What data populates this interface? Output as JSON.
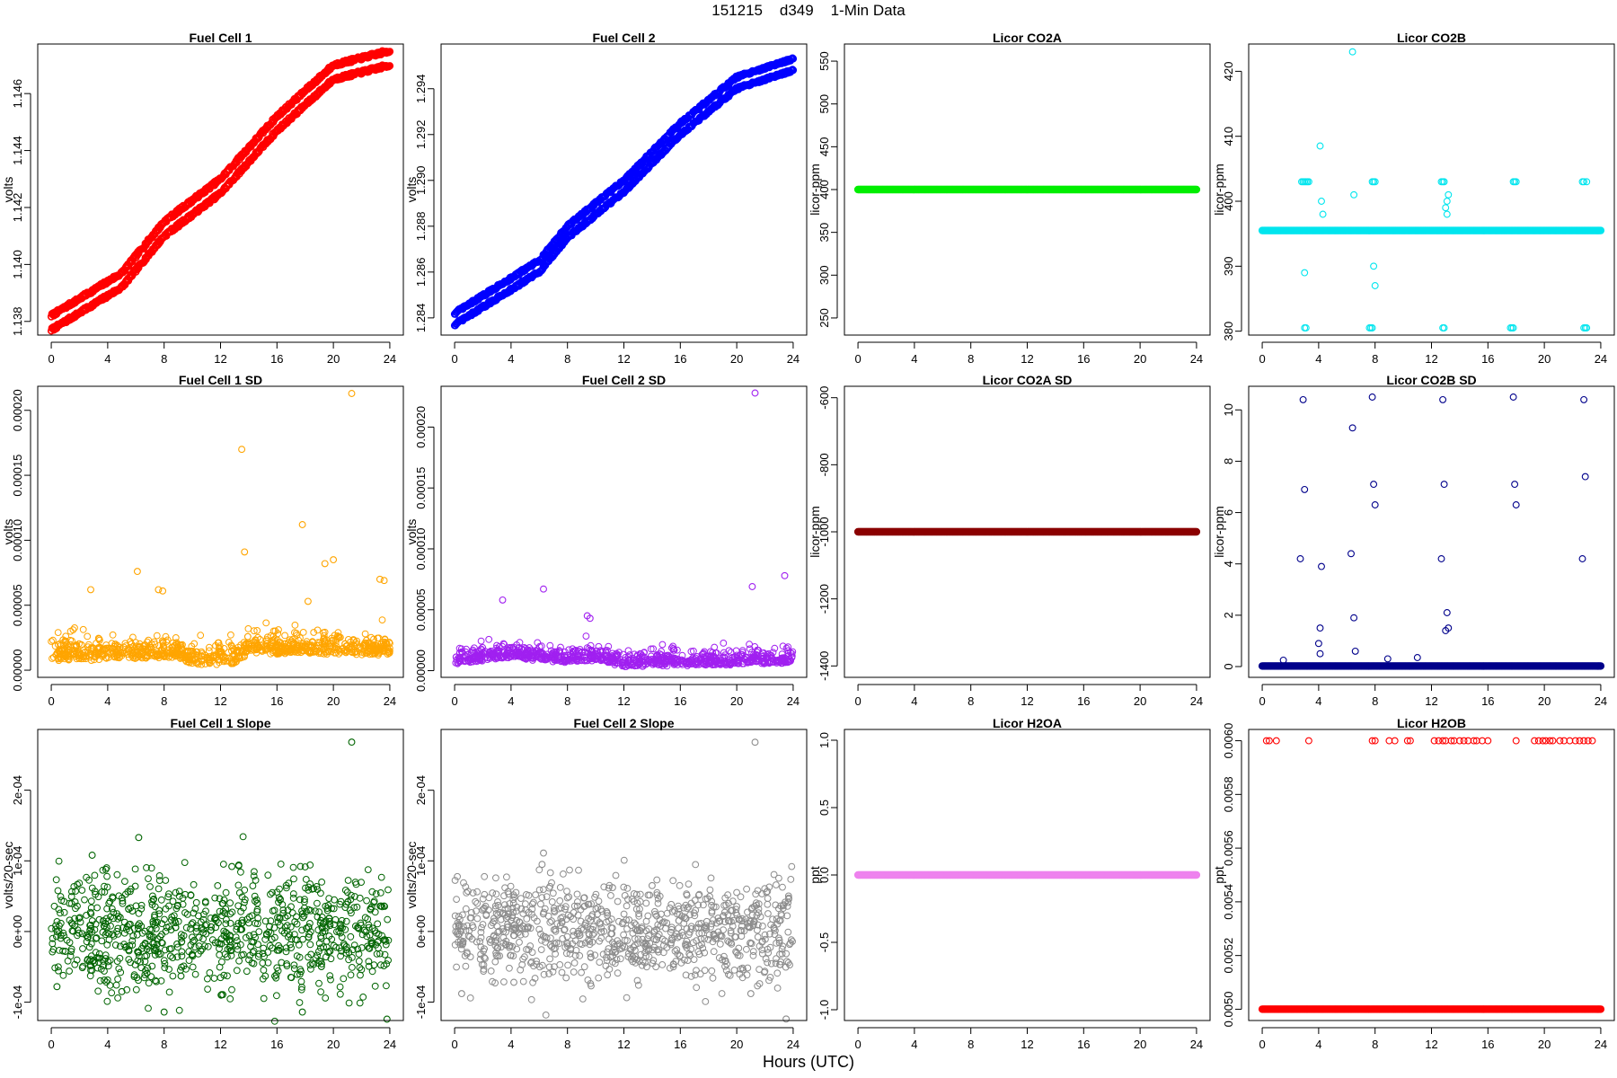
{
  "figure": {
    "title": "151215    d349    1-Min Data",
    "xlabel": "Hours (UTC)"
  },
  "chart_data": [
    {
      "type": "scatter",
      "title": "Fuel Cell 1",
      "ylabel": "volts",
      "color": "#ff0000",
      "xlim": [
        -0.96,
        24.96
      ],
      "ylim": [
        1.13752,
        1.14774
      ],
      "xticks": [
        0,
        4,
        8,
        12,
        16,
        20,
        24
      ],
      "xtick_labels": [
        "0",
        "4",
        "8",
        "12",
        "16",
        "20",
        "24"
      ],
      "yticks": [
        1.138,
        1.14,
        1.142,
        1.144,
        1.146
      ],
      "ytick_labels": [
        "1.138",
        "1.140",
        "1.142",
        "1.144",
        "1.146"
      ],
      "series": [
        {
          "gen": "twinline",
          "x_range": [
            0,
            24
          ],
          "points": [
            [
              0,
              1.1377
            ],
            [
              5,
              1.1392
            ],
            [
              8,
              1.141
            ],
            [
              12,
              1.1425
            ],
            [
              16,
              1.1447
            ],
            [
              20,
              1.1465
            ],
            [
              24,
              1.147
            ]
          ],
          "offset": 0.0005
        }
      ]
    },
    {
      "type": "scatter",
      "title": "Fuel Cell 2",
      "ylabel": "volts",
      "color": "#0000ff",
      "xlim": [
        -0.96,
        24.96
      ],
      "ylim": [
        1.28325,
        1.29595
      ],
      "xticks": [
        0,
        4,
        8,
        12,
        16,
        20,
        24
      ],
      "xtick_labels": [
        "0",
        "4",
        "8",
        "12",
        "16",
        "20",
        "24"
      ],
      "yticks": [
        1.284,
        1.286,
        1.288,
        1.29,
        1.292,
        1.294
      ],
      "ytick_labels": [
        "1.284",
        "1.286",
        "1.288",
        "1.290",
        "1.292",
        "1.294"
      ],
      "series": [
        {
          "gen": "twinline",
          "x_range": [
            0,
            24
          ],
          "points": [
            [
              0,
              1.2837
            ],
            [
              6,
              1.286
            ],
            [
              8,
              1.2875
            ],
            [
              12,
              1.2895
            ],
            [
              16,
              1.292
            ],
            [
              20,
              1.294
            ],
            [
              24,
              1.2948
            ]
          ],
          "offset": 0.0005
        }
      ]
    },
    {
      "type": "scatter",
      "title": "Licor CO2A",
      "ylabel": "licor-ppm",
      "color": "#00ee00",
      "xlim": [
        -0.96,
        24.96
      ],
      "ylim": [
        230,
        570
      ],
      "xticks": [
        0,
        4,
        8,
        12,
        16,
        20,
        24
      ],
      "xtick_labels": [
        "0",
        "4",
        "8",
        "12",
        "16",
        "20",
        "24"
      ],
      "yticks": [
        250,
        300,
        350,
        400,
        450,
        500,
        550
      ],
      "ytick_labels": [
        "250",
        "300",
        "350",
        "400",
        "450",
        "500",
        "550"
      ],
      "series": [
        {
          "gen": "flat",
          "x_range": [
            0,
            24
          ],
          "y": 400
        }
      ]
    },
    {
      "type": "scatter",
      "title": "Licor CO2B",
      "ylabel": "licor-ppm",
      "color": "#00e5ee",
      "xlim": [
        -0.96,
        24.96
      ],
      "ylim": [
        379.4,
        424.2
      ],
      "xticks": [
        0,
        4,
        8,
        12,
        16,
        20,
        24
      ],
      "xtick_labels": [
        "0",
        "4",
        "8",
        "12",
        "16",
        "20",
        "24"
      ],
      "yticks": [
        380,
        390,
        400,
        410,
        420
      ],
      "ytick_labels": [
        "380",
        "390",
        "400",
        "410",
        "420"
      ],
      "series": [
        {
          "gen": "flat",
          "x_range": [
            0,
            24
          ],
          "y": 395.5
        },
        {
          "gen": "points",
          "x": [
            2.8,
            2.9,
            3.0,
            3.1,
            3.2,
            3.3,
            3.0,
            4.1,
            4.2,
            4.3,
            6.4,
            7.8,
            7.9,
            8.0,
            12.7,
            12.8,
            12.9,
            13.1,
            13.2,
            17.8,
            17.9,
            18.0,
            22.7,
            22.8,
            23.0,
            3.0,
            3.1,
            7.6,
            7.7,
            7.8,
            12.8,
            12.9,
            17.6,
            17.7,
            17.8,
            22.8,
            22.9,
            23.0,
            6.5,
            13.0,
            13.1,
            7.9,
            8.0
          ],
          "y": [
            403,
            403,
            403,
            403,
            403,
            403,
            389,
            408.5,
            400,
            398,
            423,
            403,
            403,
            403,
            403,
            403,
            403,
            400,
            401,
            403,
            403,
            403,
            403,
            403,
            403,
            380.5,
            380.5,
            380.5,
            380.5,
            380.5,
            380.5,
            380.5,
            380.5,
            380.5,
            380.5,
            380.5,
            380.5,
            380.5,
            401,
            399,
            398,
            390,
            387
          ]
        }
      ]
    },
    {
      "type": "scatter",
      "title": "Fuel Cell 1 SD",
      "ylabel": "volts",
      "color": "#ffa500",
      "xlim": [
        -0.96,
        24.96
      ],
      "ylim": [
        -5.5e-06,
        0.0002185
      ],
      "xticks": [
        0,
        4,
        8,
        12,
        16,
        20,
        24
      ],
      "xtick_labels": [
        "0",
        "4",
        "8",
        "12",
        "16",
        "20",
        "24"
      ],
      "yticks": [
        0,
        5e-05,
        0.0001,
        0.00015,
        0.0002
      ],
      "ytick_labels": [
        "0.00000",
        "0.00005",
        "0.00010",
        "0.00015",
        "0.00020"
      ],
      "series": [
        {
          "gen": "noise",
          "x_range": [
            0,
            24
          ],
          "count": 900,
          "base": [
            [
              0,
              9e-06
            ],
            [
              9,
              1.2e-05
            ],
            [
              10,
              6e-06
            ],
            [
              13,
              7e-06
            ],
            [
              14,
              1.5e-05
            ],
            [
              24,
              1.4e-05
            ]
          ],
          "spread": 8e-06,
          "seed": 11
        },
        {
          "gen": "points",
          "x": [
            21.3,
            13.5,
            13.7,
            17.8,
            20.0,
            19.4,
            6.1,
            2.8,
            7.6,
            7.9,
            23.3,
            23.6,
            18.2
          ],
          "y": [
            0.000213,
            0.00017,
            9.1e-05,
            0.000112,
            8.5e-05,
            8.2e-05,
            7.6e-05,
            6.2e-05,
            6.2e-05,
            6.1e-05,
            7e-05,
            6.9e-05,
            5.3e-05
          ]
        }
      ]
    },
    {
      "type": "scatter",
      "title": "Fuel Cell 2 SD",
      "ylabel": "volts",
      "color": "#a020f0",
      "xlim": [
        -0.96,
        24.96
      ],
      "ylim": [
        -5.5e-06,
        0.0002335
      ],
      "xticks": [
        0,
        4,
        8,
        12,
        16,
        20,
        24
      ],
      "xtick_labels": [
        "0",
        "4",
        "8",
        "12",
        "16",
        "20",
        "24"
      ],
      "yticks": [
        0,
        5e-05,
        0.0001,
        0.00015,
        0.0002
      ],
      "ytick_labels": [
        "0.00000",
        "0.00005",
        "0.00010",
        "0.00015",
        "0.00020"
      ],
      "series": [
        {
          "gen": "noise",
          "x_range": [
            0,
            24
          ],
          "count": 900,
          "base": [
            [
              0,
              7e-06
            ],
            [
              4,
              1.2e-05
            ],
            [
              8,
              8e-06
            ],
            [
              10,
              1e-05
            ],
            [
              12,
              5e-06
            ],
            [
              20,
              6e-06
            ],
            [
              24,
              8e-06
            ]
          ],
          "spread": 6e-06,
          "seed": 23
        },
        {
          "gen": "points",
          "x": [
            21.3,
            23.4,
            21.1,
            6.3,
            3.4,
            9.4,
            9.6
          ],
          "y": [
            0.000228,
            7.8e-05,
            6.9e-05,
            6.7e-05,
            5.8e-05,
            4.5e-05,
            4.3e-05
          ]
        }
      ]
    },
    {
      "type": "scatter",
      "title": "Licor CO2A SD",
      "ylabel": "licor-ppm",
      "color": "#8b0000",
      "xlim": [
        -0.96,
        24.96
      ],
      "ylim": [
        -1434,
        -566
      ],
      "xticks": [
        0,
        4,
        8,
        12,
        16,
        20,
        24
      ],
      "xtick_labels": [
        "0",
        "4",
        "8",
        "12",
        "16",
        "20",
        "24"
      ],
      "yticks": [
        -1400,
        -1200,
        -1000,
        -800,
        -600
      ],
      "ytick_labels": [
        "-1400",
        "-1200",
        "-1000",
        "-800",
        "-600"
      ],
      "series": [
        {
          "gen": "flat",
          "x_range": [
            0,
            24
          ],
          "y": -1000
        }
      ]
    },
    {
      "type": "scatter",
      "title": "Licor CO2B SD",
      "ylabel": "licor-ppm",
      "color": "#00008b",
      "xlim": [
        -0.96,
        24.96
      ],
      "ylim": [
        -0.42,
        10.92
      ],
      "xticks": [
        0,
        4,
        8,
        12,
        16,
        20,
        24
      ],
      "xtick_labels": [
        "0",
        "4",
        "8",
        "12",
        "16",
        "20",
        "24"
      ],
      "yticks": [
        0,
        2,
        4,
        6,
        8,
        10
      ],
      "ytick_labels": [
        "0",
        "2",
        "4",
        "6",
        "8",
        "10"
      ],
      "series": [
        {
          "gen": "flat",
          "x_range": [
            0,
            24
          ],
          "y": 0.02
        },
        {
          "gen": "points",
          "x": [
            2.9,
            3.0,
            2.7,
            4.2,
            4.1,
            6.4,
            6.3,
            6.5,
            7.8,
            7.9,
            8.0,
            12.8,
            12.9,
            12.7,
            13.1,
            13.2,
            17.8,
            17.9,
            18.0,
            22.8,
            22.9,
            22.7,
            4.0,
            4.1,
            13.0,
            8.9,
            1.5,
            11.0,
            6.6
          ],
          "y": [
            10.4,
            6.9,
            4.2,
            3.9,
            1.5,
            9.3,
            4.4,
            1.9,
            10.5,
            7.1,
            6.3,
            10.4,
            7.1,
            4.2,
            2.1,
            1.5,
            10.5,
            7.1,
            6.3,
            10.4,
            7.4,
            4.2,
            0.9,
            0.5,
            1.4,
            0.3,
            0.25,
            0.35,
            0.6
          ]
        }
      ]
    },
    {
      "type": "scatter",
      "title": "Fuel Cell 1 Slope",
      "ylabel": "volts/20-sec",
      "color": "#006400",
      "xlim": [
        -0.96,
        24.96
      ],
      "ylim": [
        -0.0001259,
        0.0002859
      ],
      "xticks": [
        0,
        4,
        8,
        12,
        16,
        20,
        24
      ],
      "xtick_labels": [
        "0",
        "4",
        "8",
        "12",
        "16",
        "20",
        "24"
      ],
      "yticks": [
        -0.0001,
        0,
        0.0001,
        0.0002
      ],
      "ytick_labels": [
        "-1e-04",
        "0e+00",
        "1e-04",
        "2e-04"
      ],
      "series": [
        {
          "gen": "noise",
          "x_range": [
            0,
            24
          ],
          "count": 900,
          "base": [
            [
              0,
              0
            ],
            [
              24,
              0
            ]
          ],
          "spread": 4.2e-05,
          "seed": 31,
          "signed": true
        },
        {
          "gen": "points",
          "x": [
            21.3,
            6.2,
            2.9,
            12.8,
            23.8,
            8.0,
            17.8,
            0.4,
            5.0,
            9.2
          ],
          "y": [
            0.000268,
            0.000133,
            0.000108,
            9.2e-05,
            -0.000124,
            -0.000114,
            -0.000114,
            -7.8e-05,
            -8.5e-05,
            -6.3e-05
          ]
        }
      ]
    },
    {
      "type": "scatter",
      "title": "Fuel Cell 2 Slope",
      "ylabel": "volts/20-sec",
      "color": "#8c8c8c",
      "xlim": [
        -0.96,
        24.96
      ],
      "ylim": [
        -0.0001261,
        0.0002861
      ],
      "xticks": [
        0,
        4,
        8,
        12,
        16,
        20,
        24
      ],
      "xtick_labels": [
        "0",
        "4",
        "8",
        "12",
        "16",
        "20",
        "24"
      ],
      "yticks": [
        -0.0001,
        0,
        0.0001,
        0.0002
      ],
      "ytick_labels": [
        "-1e-04",
        "0e+00",
        "1e-04",
        "2e-04"
      ],
      "series": [
        {
          "gen": "noise",
          "x_range": [
            0,
            24
          ],
          "count": 900,
          "base": [
            [
              0,
              0
            ],
            [
              24,
              0
            ]
          ],
          "spread": 3.5e-05,
          "seed": 47,
          "signed": true
        },
        {
          "gen": "points",
          "x": [
            21.3,
            6.3,
            6.2,
            23.5,
            21.0,
            0.5,
            4.2,
            14.0,
            11.2
          ],
          "y": [
            0.000268,
            0.000111,
            9.5e-05,
            -0.000124,
            -8.8e-05,
            -8.8e-05,
            -7.2e-05,
            6.5e-05,
            6.2e-05
          ]
        }
      ]
    },
    {
      "type": "scatter",
      "title": "Licor H2OA",
      "ylabel": "ppt",
      "color": "#ee82ee",
      "xlim": [
        -0.96,
        24.96
      ],
      "ylim": [
        -1.08,
        1.08
      ],
      "xticks": [
        0,
        4,
        8,
        12,
        16,
        20,
        24
      ],
      "xtick_labels": [
        "0",
        "4",
        "8",
        "12",
        "16",
        "20",
        "24"
      ],
      "yticks": [
        -1.0,
        -0.5,
        0,
        0.5,
        1.0
      ],
      "ytick_labels": [
        "-1.0",
        "-0.5",
        "0.0",
        "0.5",
        "1.0"
      ],
      "series": [
        {
          "gen": "flat",
          "x_range": [
            0,
            24
          ],
          "y": 0.0
        }
      ]
    },
    {
      "type": "scatter",
      "title": "Licor H2OB",
      "ylabel": "ppt",
      "color": "#ff0000",
      "xlim": [
        -0.96,
        24.96
      ],
      "ylim": [
        0.004958,
        0.006042
      ],
      "xticks": [
        0,
        4,
        8,
        12,
        16,
        20,
        24
      ],
      "xtick_labels": [
        "0",
        "4",
        "8",
        "12",
        "16",
        "20",
        "24"
      ],
      "yticks": [
        0.005,
        0.0052,
        0.0054,
        0.0056,
        0.0058,
        0.006
      ],
      "ytick_labels": [
        "0.0050",
        "0.0052",
        "0.0054",
        "0.0056",
        "0.0058",
        "0.0060"
      ],
      "series": [
        {
          "gen": "flat",
          "x_range": [
            0,
            24
          ],
          "y": 0.005
        },
        {
          "gen": "points",
          "x": [
            0.3,
            0.5,
            1.0,
            3.3,
            7.8,
            8.0,
            9.0,
            9.4,
            10.3,
            10.5,
            12.2,
            12.5,
            12.8,
            13.0,
            13.4,
            13.6,
            14.0,
            14.3,
            14.6,
            15.0,
            15.2,
            15.6,
            16.0,
            18.0,
            19.3,
            19.6,
            19.9,
            20.1,
            20.4,
            20.6,
            21.1,
            21.4,
            21.8,
            22.2,
            22.5,
            22.8,
            23.1,
            23.4
          ],
          "y": [
            0.006,
            0.006,
            0.006,
            0.006,
            0.006,
            0.006,
            0.006,
            0.006,
            0.006,
            0.006,
            0.006,
            0.006,
            0.006,
            0.006,
            0.006,
            0.006,
            0.006,
            0.006,
            0.006,
            0.006,
            0.006,
            0.006,
            0.006,
            0.006,
            0.006,
            0.006,
            0.006,
            0.006,
            0.006,
            0.006,
            0.006,
            0.006,
            0.006,
            0.006,
            0.006,
            0.006,
            0.006,
            0.006
          ]
        }
      ]
    }
  ]
}
